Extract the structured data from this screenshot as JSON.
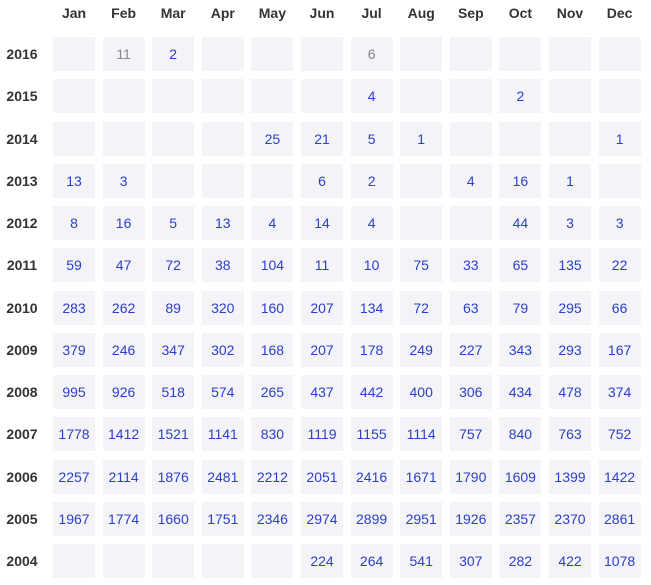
{
  "months": [
    "Jan",
    "Feb",
    "Mar",
    "Apr",
    "May",
    "Jun",
    "Jul",
    "Aug",
    "Sep",
    "Oct",
    "Nov",
    "Dec"
  ],
  "colors": {
    "link": "#2b3fc9",
    "muted": "#888888",
    "cell_bg": "#f3f3f8",
    "label": "#333333"
  },
  "rows": [
    {
      "year": "2016",
      "counts": [
        "",
        "11",
        "2",
        "",
        "",
        "",
        "6",
        "",
        "",
        "",
        "",
        ""
      ],
      "muted": [
        false,
        true,
        false,
        false,
        false,
        false,
        true,
        false,
        false,
        false,
        false,
        false
      ]
    },
    {
      "year": "2015",
      "counts": [
        "",
        "",
        "",
        "",
        "",
        "",
        "4",
        "",
        "",
        "2",
        "",
        ""
      ]
    },
    {
      "year": "2014",
      "counts": [
        "",
        "",
        "",
        "",
        "25",
        "21",
        "5",
        "1",
        "",
        "",
        "",
        "1"
      ]
    },
    {
      "year": "2013",
      "counts": [
        "13",
        "3",
        "",
        "",
        "",
        "6",
        "2",
        "",
        "4",
        "16",
        "1",
        ""
      ]
    },
    {
      "year": "2012",
      "counts": [
        "8",
        "16",
        "5",
        "13",
        "4",
        "14",
        "4",
        "",
        "",
        "44",
        "3",
        "3"
      ]
    },
    {
      "year": "2011",
      "counts": [
        "59",
        "47",
        "72",
        "38",
        "104",
        "11",
        "10",
        "75",
        "33",
        "65",
        "135",
        "22"
      ]
    },
    {
      "year": "2010",
      "counts": [
        "283",
        "262",
        "89",
        "320",
        "160",
        "207",
        "134",
        "72",
        "63",
        "79",
        "295",
        "66"
      ]
    },
    {
      "year": "2009",
      "counts": [
        "379",
        "246",
        "347",
        "302",
        "168",
        "207",
        "178",
        "249",
        "227",
        "343",
        "293",
        "167"
      ]
    },
    {
      "year": "2008",
      "counts": [
        "995",
        "926",
        "518",
        "574",
        "265",
        "437",
        "442",
        "400",
        "306",
        "434",
        "478",
        "374"
      ]
    },
    {
      "year": "2007",
      "counts": [
        "1778",
        "1412",
        "1521",
        "1141",
        "830",
        "1119",
        "1155",
        "1114",
        "757",
        "840",
        "763",
        "752"
      ]
    },
    {
      "year": "2006",
      "counts": [
        "2257",
        "2114",
        "1876",
        "2481",
        "2212",
        "2051",
        "2416",
        "1671",
        "1790",
        "1609",
        "1399",
        "1422"
      ]
    },
    {
      "year": "2005",
      "counts": [
        "1967",
        "1774",
        "1660",
        "1751",
        "2346",
        "2974",
        "2899",
        "2951",
        "1926",
        "2357",
        "2370",
        "2861"
      ]
    },
    {
      "year": "2004",
      "counts": [
        "",
        "",
        "",
        "",
        "",
        "224",
        "264",
        "541",
        "307",
        "282",
        "422",
        "1078"
      ]
    }
  ]
}
